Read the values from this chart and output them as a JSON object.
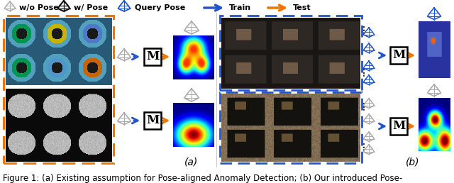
{
  "caption": "Figure 1: (a) Existing assumption for Pose-aligned Anomaly Detection; (b) Our introduced Pose-",
  "caption_fontsize": 8.5,
  "bg_color": "#ffffff",
  "section_a_label": "(a)",
  "section_b_label": "(b)",
  "orange_color": "#ee7700",
  "blue_color": "#2255cc",
  "gray_color": "#999999",
  "dark_color": "#222222",
  "figsize": [
    6.4,
    2.58
  ],
  "dpi": 100
}
